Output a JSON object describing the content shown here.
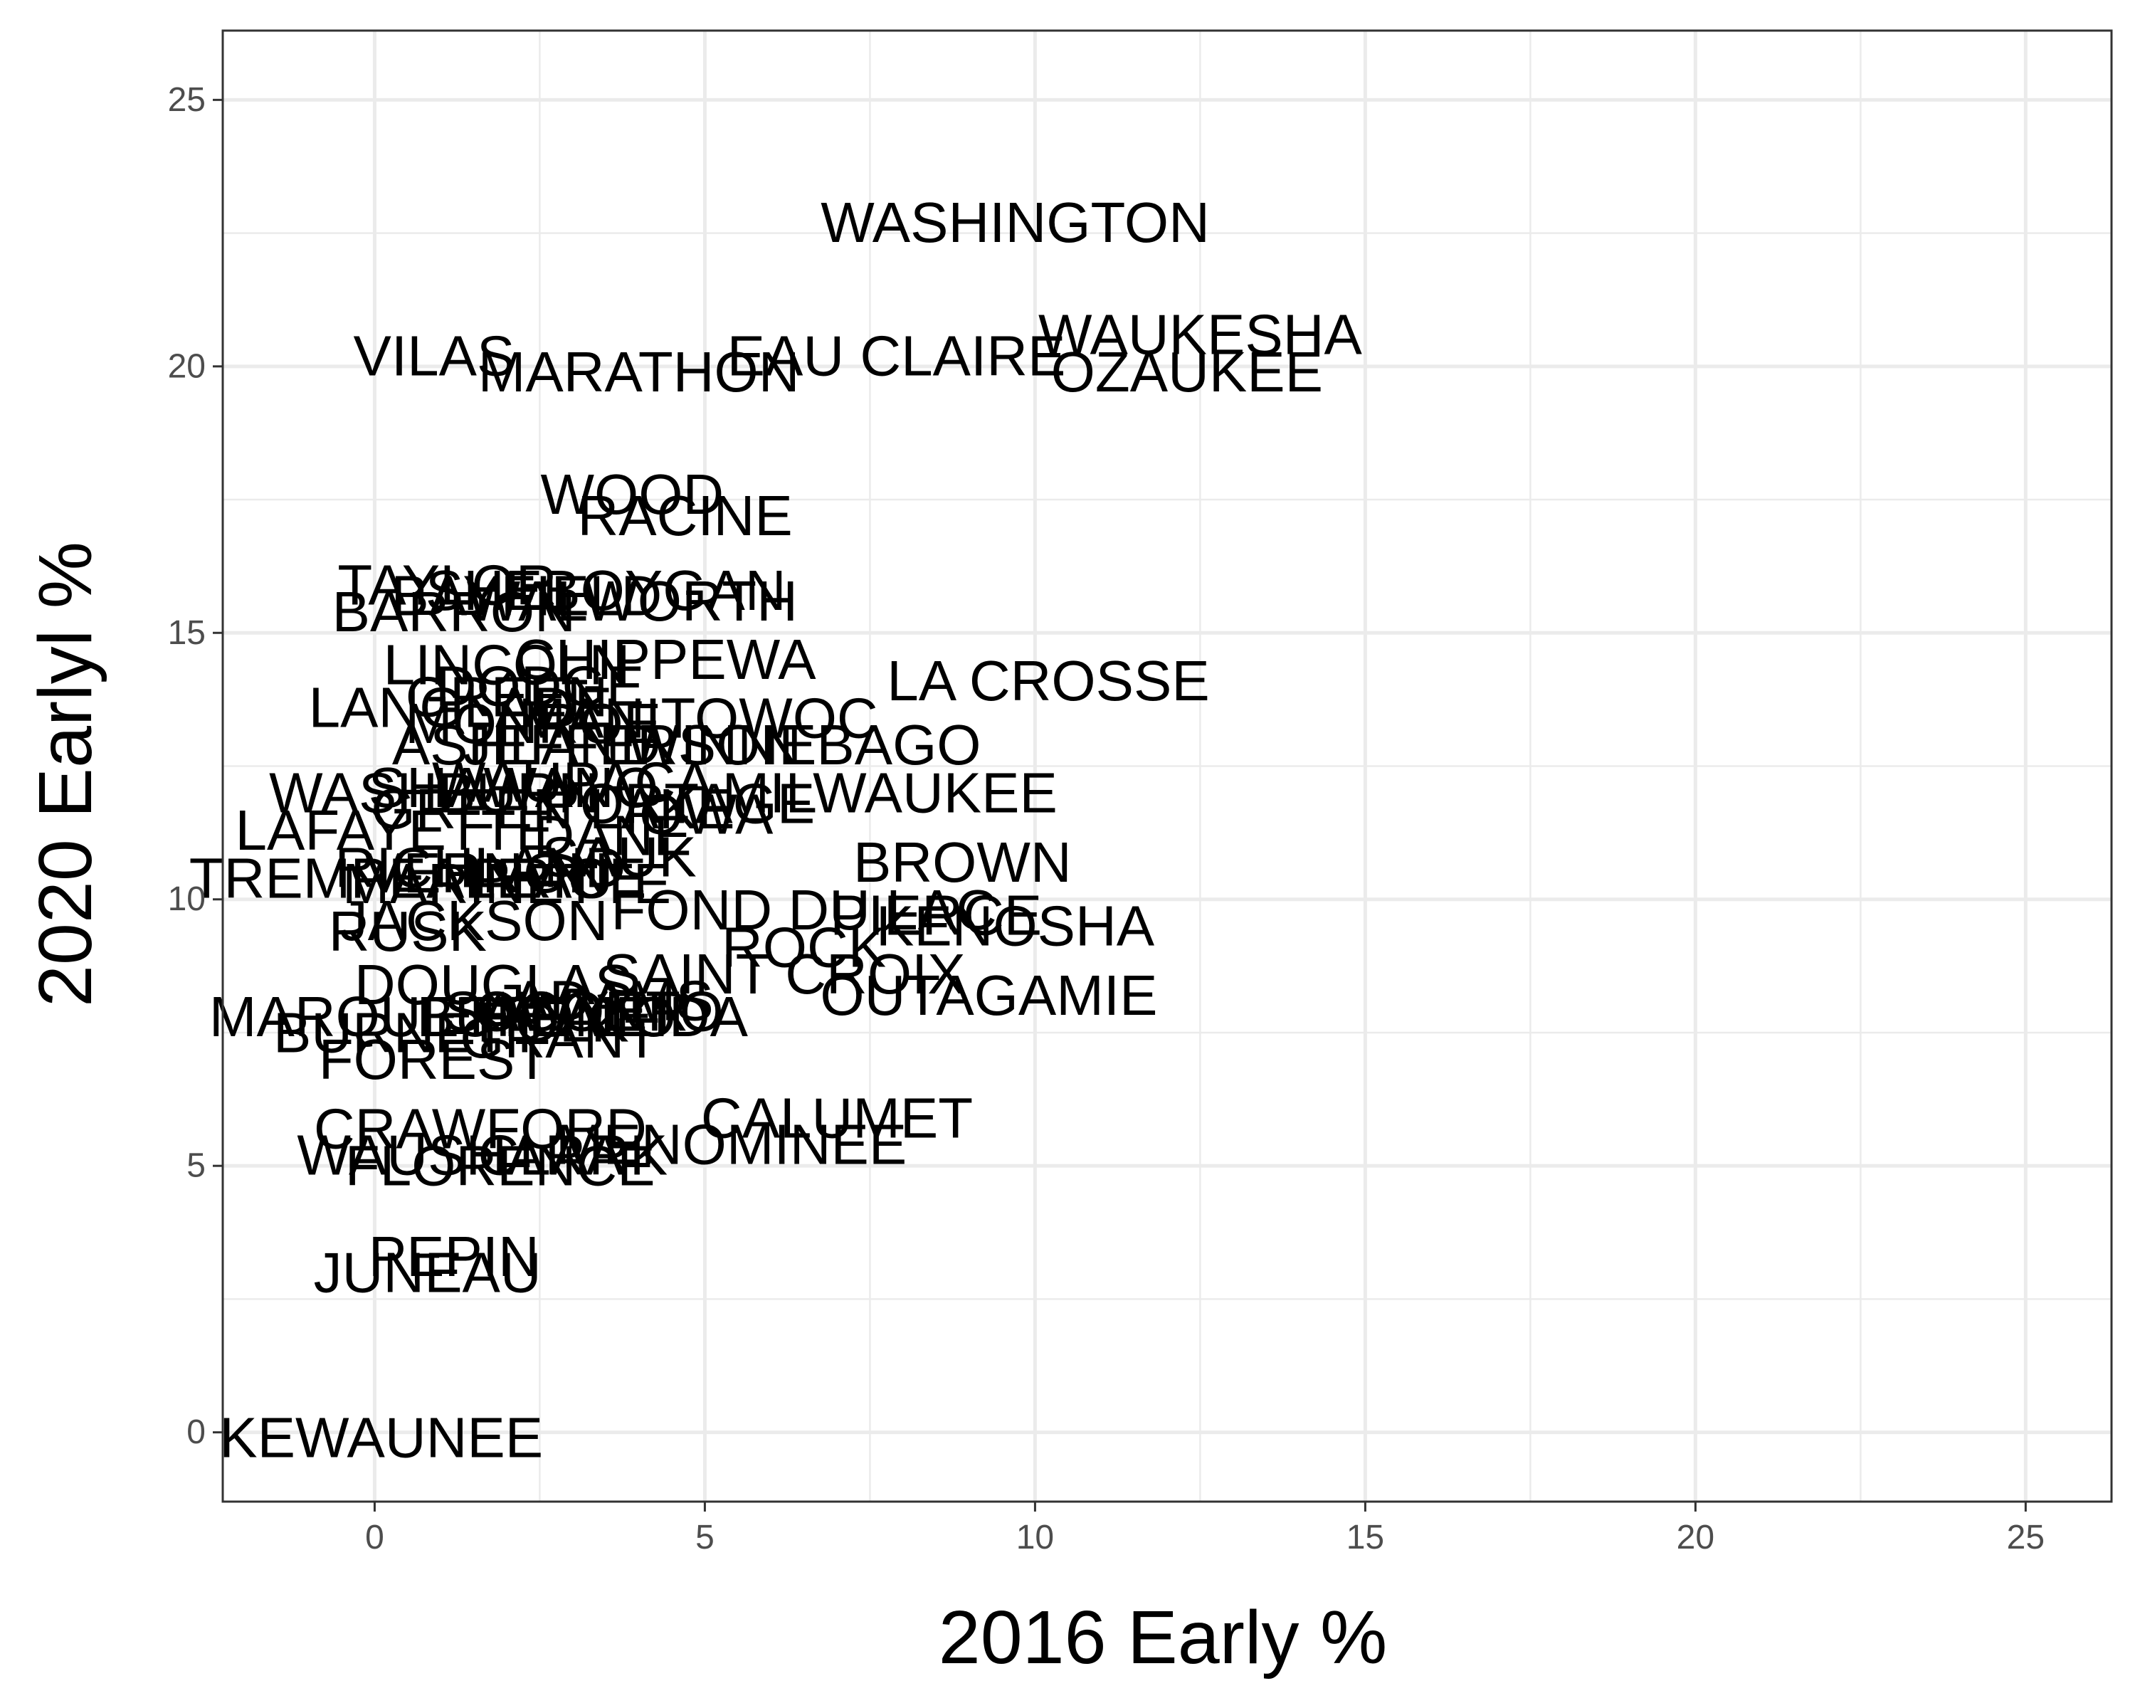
{
  "chart_data": {
    "type": "scatter",
    "xlabel": "2016 Early %",
    "ylabel": "2020 Earlyl %",
    "xlim": [
      -2.3,
      26.3
    ],
    "ylim": [
      -1.3,
      26.3
    ],
    "x_ticks": [
      0,
      5,
      10,
      15,
      20,
      25
    ],
    "y_ticks": [
      0,
      5,
      10,
      15,
      20,
      25
    ],
    "grid": true,
    "points": [
      {
        "label": "WASHINGTON",
        "x": 9.7,
        "y": 22.7
      },
      {
        "label": "WAUKESHA",
        "x": 12.5,
        "y": 20.6
      },
      {
        "label": "EAU CLAIRE",
        "x": 7.9,
        "y": 20.2
      },
      {
        "label": "OZAUKEE",
        "x": 12.3,
        "y": 19.9
      },
      {
        "label": "VILAS",
        "x": 0.9,
        "y": 20.2
      },
      {
        "label": "MARATHON",
        "x": 4.0,
        "y": 19.9
      },
      {
        "label": "WOOD",
        "x": 3.9,
        "y": 17.6
      },
      {
        "label": "RACINE",
        "x": 4.7,
        "y": 17.2
      },
      {
        "label": "TAYLOR",
        "x": 1.1,
        "y": 15.9
      },
      {
        "label": "SHEBOYGAN",
        "x": 3.5,
        "y": 15.8
      },
      {
        "label": "BAYFIELD",
        "x": 2.3,
        "y": 15.7
      },
      {
        "label": "WALWORTH",
        "x": 3.9,
        "y": 15.6
      },
      {
        "label": "BARRON",
        "x": 1.2,
        "y": 15.4
      },
      {
        "label": "CHIPPEWA",
        "x": 4.4,
        "y": 14.5
      },
      {
        "label": "LINCOLN",
        "x": 2.0,
        "y": 14.4
      },
      {
        "label": "LA CROSSE",
        "x": 10.2,
        "y": 14.1
      },
      {
        "label": "DODGE",
        "x": 2.5,
        "y": 14.0
      },
      {
        "label": "GREEN",
        "x": 2.0,
        "y": 13.8
      },
      {
        "label": "LANGLADE",
        "x": 1.3,
        "y": 13.6
      },
      {
        "label": "MANITOWOC",
        "x": 4.9,
        "y": 13.4
      },
      {
        "label": "MONROE",
        "x": 2.4,
        "y": 13.3
      },
      {
        "label": "WINNEBAGO",
        "x": 6.5,
        "y": 12.9
      },
      {
        "label": "ASHLAND",
        "x": 2.3,
        "y": 12.9
      },
      {
        "label": "JEFFERSON",
        "x": 3.9,
        "y": 12.9
      },
      {
        "label": "WAUPACA",
        "x": 3.0,
        "y": 12.2
      },
      {
        "label": "MILWAUKEE",
        "x": 7.8,
        "y": 12.0
      },
      {
        "label": "SHAWANO",
        "x": 2.1,
        "y": 12.1
      },
      {
        "label": "WASHBURN",
        "x": 0.9,
        "y": 12.0
      },
      {
        "label": "PORTAGE",
        "x": 4.6,
        "y": 11.8
      },
      {
        "label": "IOWA",
        "x": 4.9,
        "y": 11.6
      },
      {
        "label": "GREEN LAKE",
        "x": 2.7,
        "y": 11.7
      },
      {
        "label": "LAFAYETTE",
        "x": 0.3,
        "y": 11.3
      },
      {
        "label": "DANE",
        "x": 3.6,
        "y": 11.2
      },
      {
        "label": "SAUK",
        "x": 3.7,
        "y": 10.8
      },
      {
        "label": "BROWN",
        "x": 8.9,
        "y": 10.7
      },
      {
        "label": "RICHLAND",
        "x": 1.6,
        "y": 10.6
      },
      {
        "label": "VERNON",
        "x": 1.7,
        "y": 10.5
      },
      {
        "label": "PRICE",
        "x": 2.8,
        "y": 10.4
      },
      {
        "label": "TREMPEALEAU",
        "x": 0.4,
        "y": 10.4
      },
      {
        "label": "MARINETTE",
        "x": 2.0,
        "y": 10.3
      },
      {
        "label": "FOND DU LAC",
        "x": 6.5,
        "y": 9.8
      },
      {
        "label": "PIERCE",
        "x": 8.5,
        "y": 9.7
      },
      {
        "label": "KENOSHA",
        "x": 9.7,
        "y": 9.5
      },
      {
        "label": "JACKSON",
        "x": 1.5,
        "y": 9.6
      },
      {
        "label": "RUSK",
        "x": 0.5,
        "y": 9.4
      },
      {
        "label": "ROCK",
        "x": 6.5,
        "y": 9.1
      },
      {
        "label": "SAINT CROIX",
        "x": 6.2,
        "y": 8.6
      },
      {
        "label": "OUTAGAMIE",
        "x": 9.3,
        "y": 8.2
      },
      {
        "label": "DOUGLAS",
        "x": 1.8,
        "y": 8.4
      },
      {
        "label": "ADAMS",
        "x": 3.6,
        "y": 8.1
      },
      {
        "label": "OCONTO",
        "x": 3.4,
        "y": 7.9
      },
      {
        "label": "SAWYER",
        "x": 2.9,
        "y": 7.9
      },
      {
        "label": "ONEIDA",
        "x": 4.0,
        "y": 7.8
      },
      {
        "label": "BUFFALO",
        "x": 2.6,
        "y": 7.8
      },
      {
        "label": "POLK",
        "x": 2.7,
        "y": 7.7
      },
      {
        "label": "MARQUETTE",
        "x": 0.2,
        "y": 7.8
      },
      {
        "label": "BURNETT",
        "x": 0.5,
        "y": 7.5
      },
      {
        "label": "GRANT",
        "x": 2.8,
        "y": 7.4
      },
      {
        "label": "FOREST",
        "x": 0.9,
        "y": 7.0
      },
      {
        "label": "CALUMET",
        "x": 7.0,
        "y": 5.9
      },
      {
        "label": "CRAWFORD",
        "x": 1.6,
        "y": 5.7
      },
      {
        "label": "MENOMINEE",
        "x": 5.4,
        "y": 5.4
      },
      {
        "label": "WAUSHARA",
        "x": 1.3,
        "y": 5.2
      },
      {
        "label": "CLARK",
        "x": 3.0,
        "y": 5.2
      },
      {
        "label": "FLORENCE",
        "x": 1.9,
        "y": 5.0
      },
      {
        "label": "PEPIN",
        "x": 1.2,
        "y": 3.3
      },
      {
        "label": "JUNEAU",
        "x": 0.8,
        "y": 3.0
      },
      {
        "label": "KEWAUNEE",
        "x": 0.1,
        "y": -0.1
      }
    ]
  }
}
